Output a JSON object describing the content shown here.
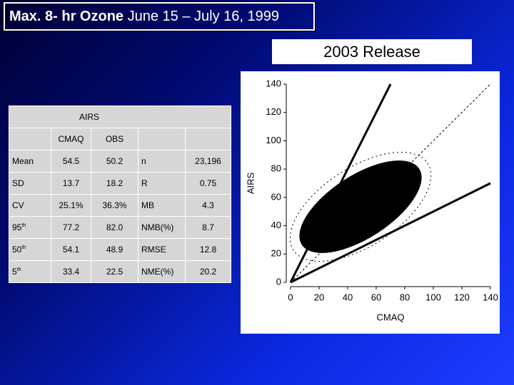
{
  "title": {
    "bold": "Max. 8- hr Ozone",
    "rest": "June 15 – July 16, 1999"
  },
  "release": "2003 Release",
  "table": {
    "group_header": "AIRS",
    "columns": [
      "CMAQ",
      "OBS"
    ],
    "rows": [
      [
        {
          "text": "Mean"
        },
        "54.5",
        "50.2",
        "n",
        "23,196"
      ],
      [
        {
          "text": "SD"
        },
        "13.7",
        "18.2",
        "R",
        "0.75"
      ],
      [
        {
          "text": "CV"
        },
        "25.1%",
        "36.3%",
        "MB",
        "4.3"
      ],
      [
        {
          "text": "95",
          "sup": "th"
        },
        "77.2",
        "82.0",
        "NMB(%)",
        "8.7"
      ],
      [
        {
          "text": "50",
          "sup": "th"
        },
        "54.1",
        "48.9",
        "RMSE",
        "12.8"
      ],
      [
        {
          "text": "5",
          "sup": "th"
        },
        "33.4",
        "22.5",
        "NME(%)",
        "20.2"
      ]
    ]
  },
  "chart_data": {
    "type": "scatter",
    "x_label": "CMAQ",
    "y_label": "AIRS",
    "xlim": [
      0,
      140
    ],
    "ylim": [
      0,
      140
    ],
    "xticks": [
      0,
      20,
      40,
      60,
      80,
      100,
      120,
      140
    ],
    "yticks": [
      0,
      20,
      40,
      60,
      80,
      100,
      120,
      140
    ],
    "reference_slopes": [
      2,
      1,
      0.5
    ]
  }
}
